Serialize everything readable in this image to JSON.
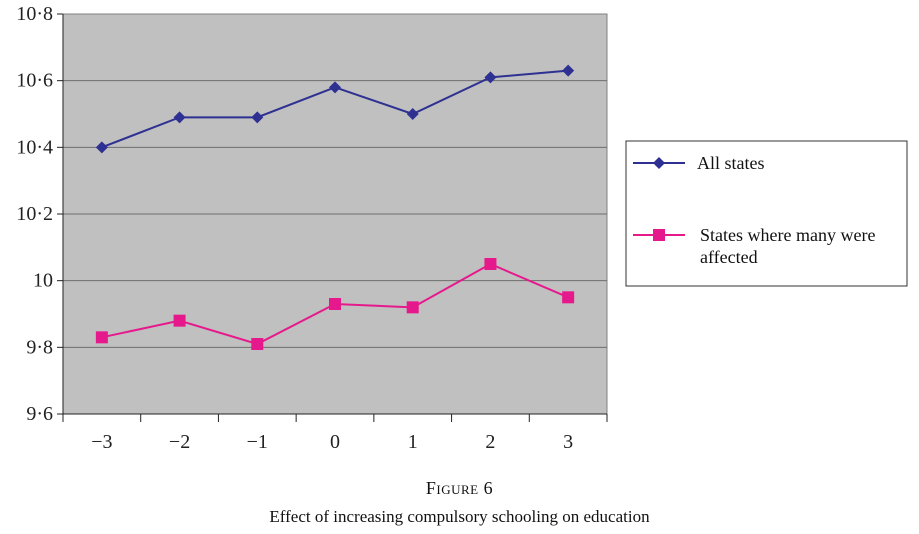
{
  "chart_data": {
    "type": "line",
    "x": [
      "−3",
      "−2",
      "−1",
      "0",
      "1",
      "2",
      "3"
    ],
    "ylim": [
      9.6,
      10.8
    ],
    "yticks": [
      "9·6",
      "9·8",
      "10",
      "10·2",
      "10·4",
      "10·6",
      "10·8"
    ],
    "ytick_values": [
      9.6,
      9.8,
      10.0,
      10.2,
      10.4,
      10.6,
      10.8
    ],
    "grid": true,
    "legend_position": "right",
    "plot_background": "#c0c0c0",
    "series": [
      {
        "name": "All states",
        "values": [
          10.4,
          10.49,
          10.49,
          10.58,
          10.5,
          10.61,
          10.63
        ],
        "color": "#2e3192",
        "marker": "diamond"
      },
      {
        "name": "States where many were affected",
        "legend_lines": [
          "States where many were",
          "affected"
        ],
        "values": [
          9.83,
          9.88,
          9.81,
          9.93,
          9.92,
          10.05,
          9.95
        ],
        "color": "#e6198c",
        "marker": "square"
      }
    ]
  },
  "figure": {
    "label": "Figure 6",
    "caption": "Effect of increasing compulsory schooling on education"
  }
}
